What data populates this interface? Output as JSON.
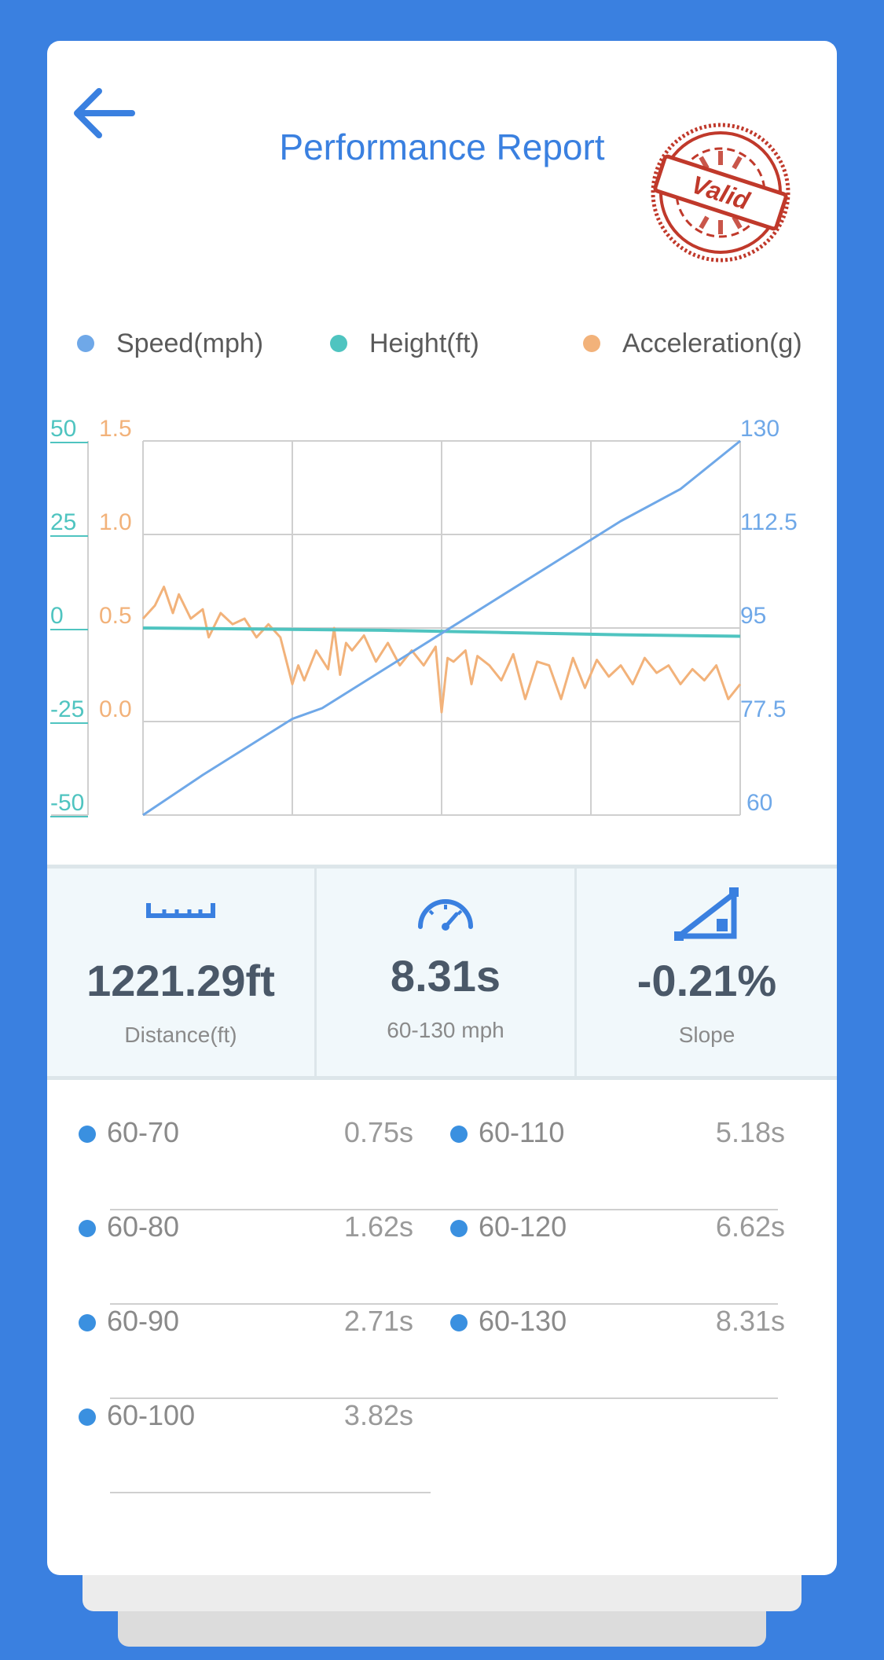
{
  "header": {
    "title": "Performance Report",
    "stamp_text": "Valid",
    "stamp_color": "#c0392b"
  },
  "legend": [
    {
      "label": "Speed(mph)",
      "color": "#6fa8e8"
    },
    {
      "label": "Height(ft)",
      "color": "#4fc4c0"
    },
    {
      "label": "Acceleration(g)",
      "color": "#f2b27a"
    }
  ],
  "chart_data": {
    "type": "line",
    "grid": true,
    "y_axes": {
      "height": {
        "ticks": [
          "50",
          "25",
          "0",
          "-25",
          "-50"
        ],
        "range": [
          -50,
          50
        ],
        "color": "#4fc4c0"
      },
      "acceleration": {
        "ticks": [
          "1.5",
          "1.0",
          "0.5",
          "0.0"
        ],
        "range": [
          -0.5,
          1.5
        ],
        "color": "#f2b27a"
      },
      "speed": {
        "ticks": [
          "130",
          "112.5",
          "95",
          "77.5",
          "60"
        ],
        "range": [
          60,
          130
        ],
        "color": "#6fa8e8"
      }
    },
    "x_range": [
      0,
      1
    ],
    "series": [
      {
        "name": "Speed(mph)",
        "color": "#6fa8e8",
        "axis": "speed",
        "x": [
          0,
          0.1,
          0.2,
          0.25,
          0.3,
          0.4,
          0.5,
          0.6,
          0.7,
          0.8,
          0.9,
          1.0
        ],
        "values": [
          60,
          67.5,
          74.5,
          78,
          80,
          87,
          94,
          101,
          108,
          115,
          121,
          130
        ]
      },
      {
        "name": "Height(ft)",
        "color": "#4fc4c0",
        "axis": "height",
        "x": [
          0,
          0.2,
          0.4,
          0.6,
          0.8,
          1.0
        ],
        "values": [
          0,
          -0.3,
          -0.6,
          -1.2,
          -1.8,
          -2.2
        ]
      },
      {
        "name": "Acceleration(g)",
        "color": "#f2b27a",
        "axis": "acceleration",
        "x": [
          0,
          0.02,
          0.035,
          0.05,
          0.06,
          0.08,
          0.1,
          0.11,
          0.13,
          0.15,
          0.17,
          0.19,
          0.21,
          0.23,
          0.25,
          0.26,
          0.27,
          0.29,
          0.31,
          0.32,
          0.33,
          0.34,
          0.35,
          0.37,
          0.39,
          0.41,
          0.43,
          0.45,
          0.47,
          0.49,
          0.5,
          0.51,
          0.52,
          0.54,
          0.55,
          0.56,
          0.58,
          0.6,
          0.62,
          0.64,
          0.66,
          0.68,
          0.7,
          0.72,
          0.74,
          0.76,
          0.78,
          0.8,
          0.82,
          0.84,
          0.86,
          0.88,
          0.9,
          0.92,
          0.94,
          0.96,
          0.98,
          1.0
        ],
        "values": [
          0.55,
          0.62,
          0.72,
          0.58,
          0.68,
          0.55,
          0.6,
          0.45,
          0.58,
          0.52,
          0.55,
          0.45,
          0.52,
          0.45,
          0.2,
          0.3,
          0.22,
          0.38,
          0.28,
          0.5,
          0.25,
          0.42,
          0.38,
          0.46,
          0.32,
          0.42,
          0.3,
          0.38,
          0.3,
          0.4,
          0.05,
          0.34,
          0.32,
          0.38,
          0.2,
          0.35,
          0.3,
          0.22,
          0.36,
          0.12,
          0.32,
          0.3,
          0.12,
          0.34,
          0.18,
          0.33,
          0.24,
          0.3,
          0.2,
          0.34,
          0.26,
          0.3,
          0.2,
          0.28,
          0.22,
          0.3,
          0.12,
          0.2
        ]
      }
    ]
  },
  "stats": [
    {
      "icon": "ruler-icon",
      "value": "1221.29ft",
      "label": "Distance(ft)"
    },
    {
      "icon": "speedometer-icon",
      "value": "8.31s",
      "label": "60-130 mph"
    },
    {
      "icon": "slope-icon",
      "value": "-0.21%",
      "label": "Slope"
    }
  ],
  "splits": [
    {
      "label": "60-70",
      "value": "0.75s"
    },
    {
      "label": "60-80",
      "value": "1.62s"
    },
    {
      "label": "60-90",
      "value": "2.71s"
    },
    {
      "label": "60-100",
      "value": "3.82s"
    },
    {
      "label": "60-110",
      "value": "5.18s"
    },
    {
      "label": "60-120",
      "value": "6.62s"
    },
    {
      "label": "60-130",
      "value": "8.31s"
    }
  ]
}
